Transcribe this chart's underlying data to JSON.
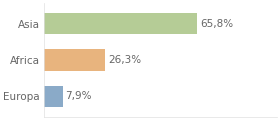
{
  "categories": [
    "Europa",
    "Africa",
    "Asia"
  ],
  "values": [
    65.8,
    26.3,
    7.9
  ],
  "labels": [
    "65,8%",
    "26,3%",
    "7,9%"
  ],
  "bar_colors": [
    "#b5cc96",
    "#e8b47e",
    "#8aaac8"
  ],
  "background_color": "#ffffff",
  "xlim": [
    0,
    100
  ],
  "bar_height": 0.58,
  "label_fontsize": 7.5,
  "tick_fontsize": 7.5,
  "text_color": "#666666",
  "grid_color": "#e0e0e0"
}
